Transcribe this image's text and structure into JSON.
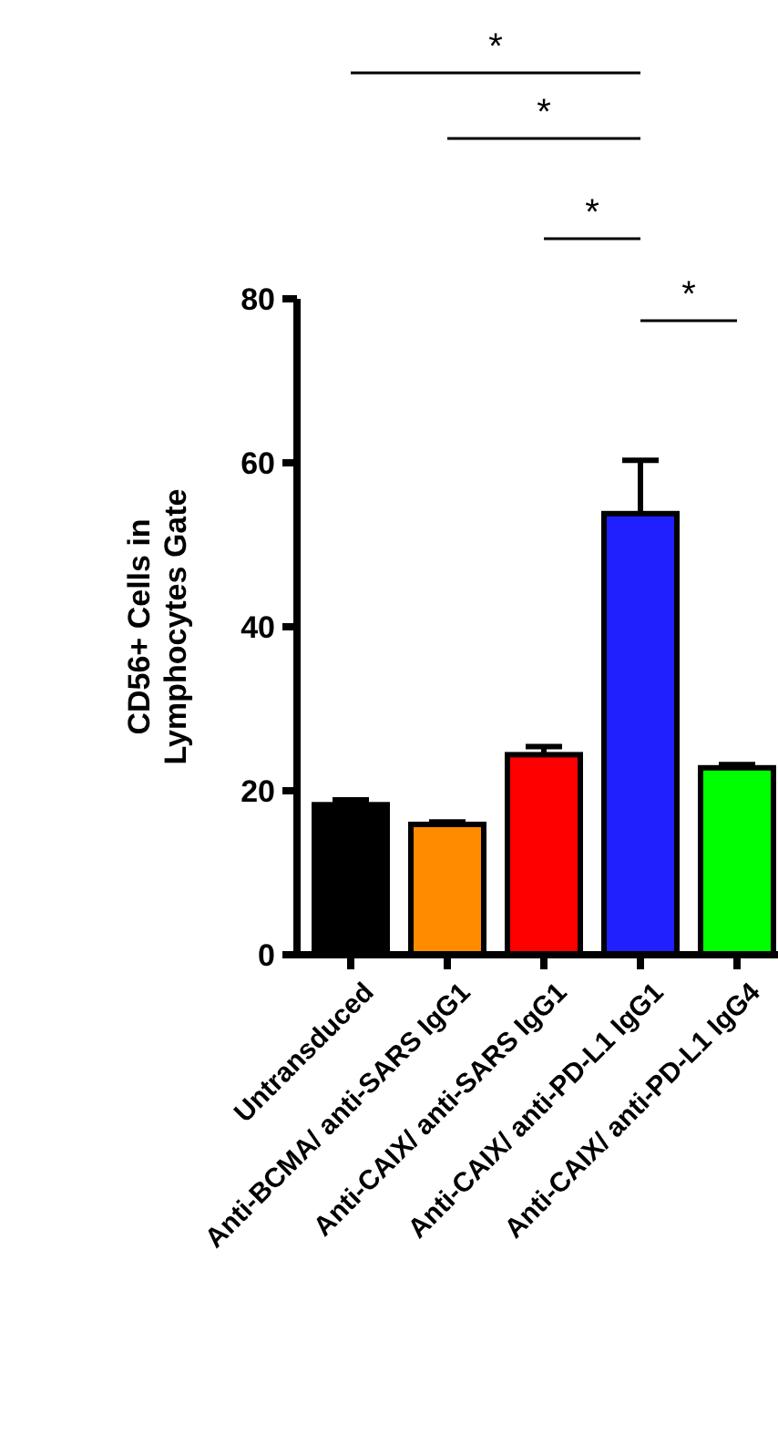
{
  "chart_data": {
    "type": "bar",
    "ylabel": "CD56+ Cells in Lymphocytes Gate",
    "categories": [
      "Untransduced",
      "Anti-BCMA/ anti-SARS IgG1",
      "Anti-CAIX/ anti-SARS IgG1",
      "Anti-CAIX/ anti-PD-L1 IgG1",
      "Anti-CAIX/ anti-PD-L1 IgG4"
    ],
    "values": [
      18.3,
      15.9,
      24.4,
      53.8,
      22.8
    ],
    "errors": [
      0.6,
      0.3,
      1.0,
      6.5,
      0.4
    ],
    "colors": [
      "#000000",
      "#ff8c00",
      "#ff0000",
      "#2020ff",
      "#00ff00"
    ],
    "ylim": [
      0,
      80
    ],
    "yticks": [
      0,
      20,
      40,
      60,
      80
    ],
    "annotations": [
      "*",
      "*",
      "*",
      "*"
    ]
  }
}
